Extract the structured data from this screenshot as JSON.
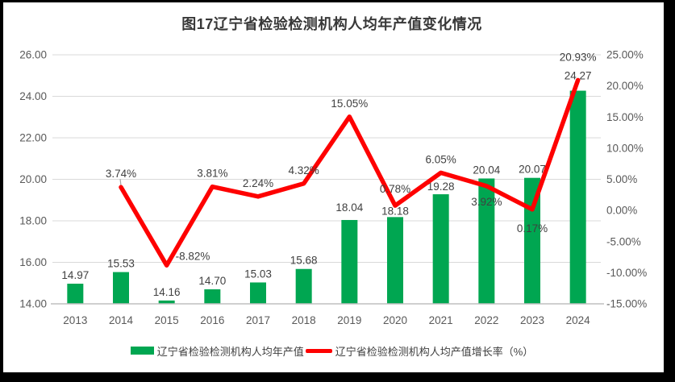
{
  "chart_data": {
    "type": "combo-bar-line",
    "title": "图17辽宁省检验检测机构人均年产值变化情况",
    "categories": [
      "2013",
      "2014",
      "2015",
      "2016",
      "2017",
      "2018",
      "2019",
      "2020",
      "2021",
      "2022",
      "2023",
      "2024"
    ],
    "series": [
      {
        "name": "辽宁省检验检测机构人均年产值",
        "type": "bar",
        "axis": "left",
        "values": [
          14.97,
          15.53,
          14.16,
          14.7,
          15.03,
          15.68,
          18.04,
          18.18,
          19.28,
          20.04,
          20.07,
          24.27
        ],
        "labels": [
          "14.97",
          "15.53",
          "14.16",
          "14.70",
          "15.03",
          "15.68",
          "18.04",
          "18.18",
          "19.28",
          "20.04",
          "20.07",
          "24.27"
        ]
      },
      {
        "name": "辽宁省检验检测机构人均产值增长率（%）",
        "type": "line",
        "axis": "right",
        "start_category_index": 1,
        "values": [
          3.74,
          -8.82,
          3.81,
          2.24,
          4.32,
          15.05,
          0.78,
          6.05,
          3.92,
          0.17,
          20.93
        ],
        "labels": [
          "3.74%",
          "-8.82%",
          "3.81%",
          "2.24%",
          "4.32%",
          "15.05%",
          "0.78%",
          "6.05%",
          "3.92%",
          "0.17%",
          "20.93%"
        ]
      }
    ],
    "left_axis": {
      "min": 14,
      "max": 26,
      "step": 2,
      "tick_labels": [
        "26.00",
        "24.00",
        "22.00",
        "20.00",
        "18.00",
        "16.00",
        "14.00"
      ]
    },
    "right_axis": {
      "min": -15,
      "max": 25,
      "step": 5,
      "tick_labels": [
        "25.00%",
        "20.00%",
        "15.00%",
        "10.00%",
        "5.00%",
        "0.00%",
        "-5.00%",
        "-10.00%",
        "-15.00%"
      ]
    },
    "grid": true,
    "legend_position": "bottom",
    "colors": {
      "bar": "#00A651",
      "line": "#FE0000",
      "grid": "#D9D9D9",
      "axis_line": "#BFBFBF",
      "axis_text": "#595959",
      "label_text": "#404040",
      "title_text": "#383838",
      "background": "#FFFFFF",
      "frame": "#000000"
    }
  }
}
